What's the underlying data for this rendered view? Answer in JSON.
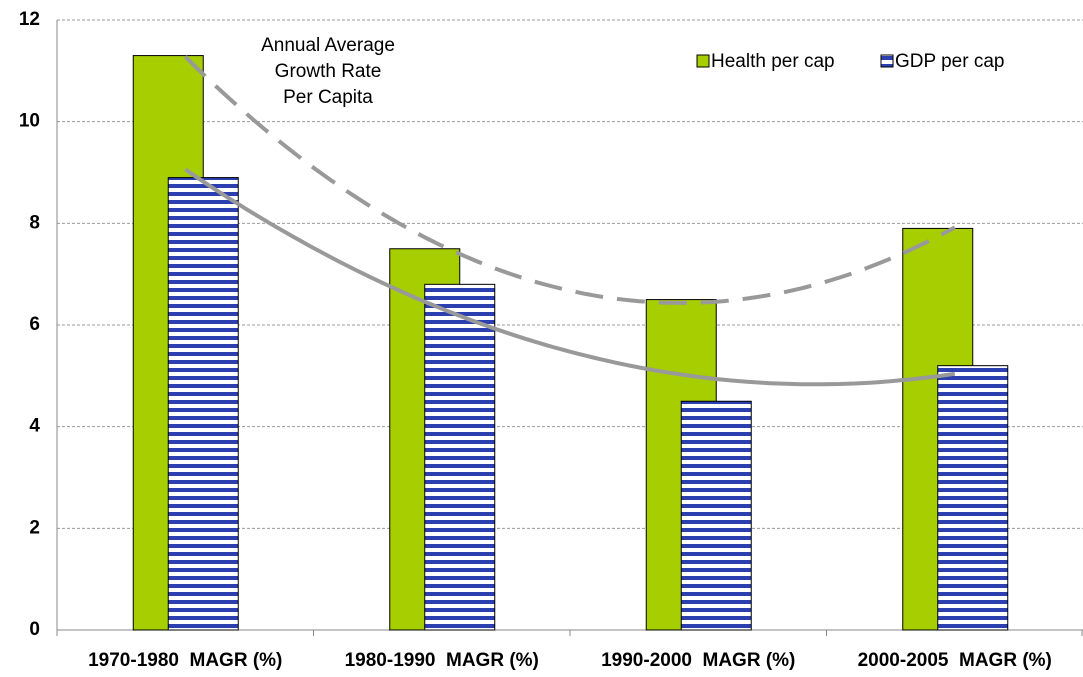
{
  "chart_data": {
    "type": "bar",
    "annotation": [
      "Annual Average",
      "Growth Rate",
      "Per Capita"
    ],
    "categories": [
      "1970-1980  MAGR (%)",
      "1980-1990  MAGR (%)",
      "1990-2000  MAGR (%)",
      "2000-2005  MAGR (%)"
    ],
    "series": [
      {
        "name": "Health per cap",
        "color": "#a6ce00",
        "values": [
          11.3,
          7.5,
          6.5,
          7.9
        ],
        "trendline": {
          "order": 2,
          "style": "dashed"
        }
      },
      {
        "name": "GDP per cap",
        "color": "#2b3fb0",
        "pattern": "horizontal-stripes",
        "values": [
          8.9,
          6.8,
          4.5,
          5.2
        ],
        "trendline": {
          "order": 2,
          "style": "solid"
        }
      }
    ],
    "ylim": [
      0,
      12
    ],
    "yticks": [
      0,
      2,
      4,
      6,
      8,
      10,
      12
    ],
    "grid": true,
    "legend": "top-right"
  }
}
